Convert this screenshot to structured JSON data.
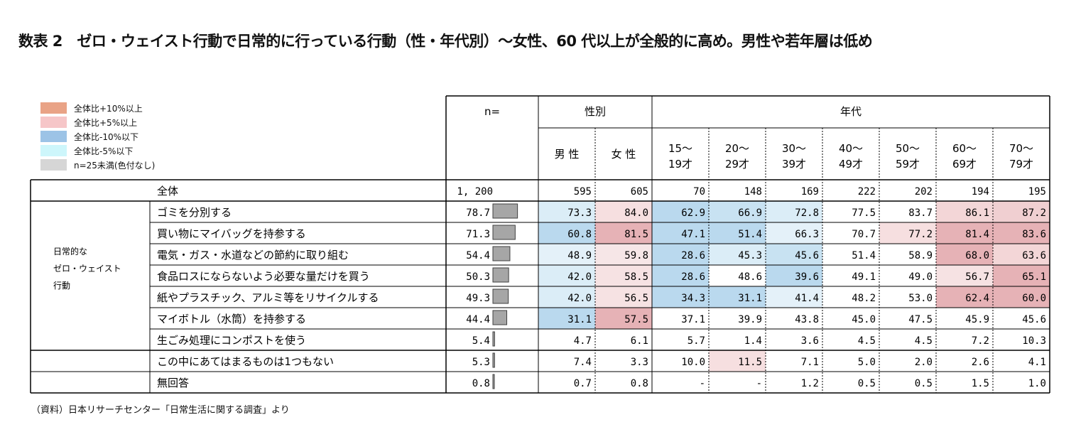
{
  "title": "数表 2　ゼロ・ウェイスト行動で日常的に行っている行動（性・年代別）〜女性、60 代以上が全般的に高め。男性や若年層は低め",
  "legend": [
    {
      "label": "全体比+10%以上",
      "color": "#e9a386"
    },
    {
      "label": "全体比+5%以上",
      "color": "#f6c6c8"
    },
    {
      "label": "全体比-10%以下",
      "color": "#9cc3e6"
    },
    {
      "label": "全体比-5%以下",
      "color": "#cdf6fb"
    },
    {
      "label": "n=25未満(色付なし)",
      "color": "#d6d6d6"
    }
  ],
  "note": "（資料）日本リサーチセンター「日常生活に関する調査」より",
  "chart_data": {
    "type": "table",
    "header": {
      "n_label": "n=",
      "gender_group": "性別",
      "age_group": "年代",
      "columns": [
        {
          "line1": "男 性",
          "line2": ""
        },
        {
          "line1": "女 性",
          "line2": ""
        },
        {
          "line1": "15〜",
          "line2": "19才"
        },
        {
          "line1": "20〜",
          "line2": "29才"
        },
        {
          "line1": "30〜",
          "line2": "39才"
        },
        {
          "line1": "40〜",
          "line2": "49才"
        },
        {
          "line1": "50〜",
          "line2": "59才"
        },
        {
          "line1": "60〜",
          "line2": "69才"
        },
        {
          "line1": "70〜",
          "line2": "79才"
        }
      ]
    },
    "group_label": [
      "日常的な",
      "ゼロ・ウェイスト",
      "行動"
    ],
    "base_row": {
      "label": "全体",
      "total": "1, 200",
      "cells": [
        "595",
        "605",
        "70",
        "148",
        "169",
        "222",
        "202",
        "194",
        "195"
      ]
    },
    "rows": [
      {
        "label": "ゴミを分別する",
        "total": "78.7",
        "total_value": 78.7,
        "group": true,
        "cells": [
          {
            "v": "73.3",
            "c": "#dbedf7"
          },
          {
            "v": "84.0",
            "c": "#f6dfe0"
          },
          {
            "v": "62.9",
            "c": "#bad9ee"
          },
          {
            "v": "66.9",
            "c": "#c8e2f2"
          },
          {
            "v": "72.8",
            "c": "#dbedf7"
          },
          {
            "v": "77.5",
            "c": ""
          },
          {
            "v": "83.7",
            "c": ""
          },
          {
            "v": "86.1",
            "c": "#f3d6d7"
          },
          {
            "v": "87.2",
            "c": "#f0cfd1"
          }
        ]
      },
      {
        "label": "買い物にマイバッグを持参する",
        "total": "71.3",
        "total_value": 71.3,
        "group": true,
        "cells": [
          {
            "v": "60.8",
            "c": "#bad9ee"
          },
          {
            "v": "81.5",
            "c": "#e6b2b6"
          },
          {
            "v": "47.1",
            "c": "#bad9ee"
          },
          {
            "v": "51.4",
            "c": "#bad9ee"
          },
          {
            "v": "66.3",
            "c": "#e4f1f9"
          },
          {
            "v": "70.7",
            "c": ""
          },
          {
            "v": "77.2",
            "c": "#f6dfe0"
          },
          {
            "v": "81.4",
            "c": "#e6b2b6"
          },
          {
            "v": "83.6",
            "c": "#e6b2b6"
          }
        ]
      },
      {
        "label": "電気・ガス・水道などの節約に取り組む",
        "total": "54.4",
        "total_value": 54.4,
        "group": true,
        "cells": [
          {
            "v": "48.9",
            "c": "#e4f1f9"
          },
          {
            "v": "59.8",
            "c": "#f6e6e7"
          },
          {
            "v": "28.6",
            "c": "#bad9ee"
          },
          {
            "v": "45.3",
            "c": "#dbedf7"
          },
          {
            "v": "45.6",
            "c": "#c8e2f2"
          },
          {
            "v": "51.4",
            "c": ""
          },
          {
            "v": "58.9",
            "c": ""
          },
          {
            "v": "68.0",
            "c": "#e6b2b6"
          },
          {
            "v": "63.6",
            "c": "#f3d6d7"
          }
        ]
      },
      {
        "label": "食品ロスにならないよう必要な量だけを買う",
        "total": "50.3",
        "total_value": 50.3,
        "group": true,
        "cells": [
          {
            "v": "42.0",
            "c": "#dbedf7"
          },
          {
            "v": "58.5",
            "c": "#f6e2e3"
          },
          {
            "v": "28.6",
            "c": "#bad9ee"
          },
          {
            "v": "48.6",
            "c": ""
          },
          {
            "v": "39.6",
            "c": "#bad9ee"
          },
          {
            "v": "49.1",
            "c": ""
          },
          {
            "v": "49.0",
            "c": ""
          },
          {
            "v": "56.7",
            "c": "#f6e2e3"
          },
          {
            "v": "65.1",
            "c": "#e6b2b6"
          }
        ]
      },
      {
        "label": "紙やプラスチック、アルミ等をリサイクルする",
        "total": "49.3",
        "total_value": 49.3,
        "group": true,
        "cells": [
          {
            "v": "42.0",
            "c": "#dbedf7"
          },
          {
            "v": "56.5",
            "c": "#f6e2e3"
          },
          {
            "v": "34.3",
            "c": "#bad9ee"
          },
          {
            "v": "31.1",
            "c": "#bad9ee"
          },
          {
            "v": "41.4",
            "c": "#e4f1f9"
          },
          {
            "v": "48.2",
            "c": ""
          },
          {
            "v": "53.0",
            "c": ""
          },
          {
            "v": "62.4",
            "c": "#e6b2b6"
          },
          {
            "v": "60.0",
            "c": "#e6b2b6"
          }
        ]
      },
      {
        "label": "マイボトル（水筒）を持参する",
        "total": "44.4",
        "total_value": 44.4,
        "group": true,
        "cells": [
          {
            "v": "31.1",
            "c": "#bad9ee"
          },
          {
            "v": "57.5",
            "c": "#e6b2b6"
          },
          {
            "v": "37.1",
            "c": ""
          },
          {
            "v": "39.9",
            "c": ""
          },
          {
            "v": "43.8",
            "c": ""
          },
          {
            "v": "45.0",
            "c": ""
          },
          {
            "v": "47.5",
            "c": ""
          },
          {
            "v": "45.9",
            "c": ""
          },
          {
            "v": "45.6",
            "c": ""
          }
        ]
      },
      {
        "label": "生ごみ処理にコンポストを使う",
        "total": "5.4",
        "total_value": 5.4,
        "group": true,
        "cells": [
          {
            "v": "4.7",
            "c": ""
          },
          {
            "v": "6.1",
            "c": ""
          },
          {
            "v": "5.7",
            "c": ""
          },
          {
            "v": "1.4",
            "c": ""
          },
          {
            "v": "3.6",
            "c": ""
          },
          {
            "v": "4.5",
            "c": ""
          },
          {
            "v": "4.5",
            "c": ""
          },
          {
            "v": "7.2",
            "c": ""
          },
          {
            "v": "10.3",
            "c": ""
          }
        ]
      },
      {
        "label": "この中にあてはまるものは1つもない",
        "total": "5.3",
        "total_value": 5.3,
        "group": false,
        "cells": [
          {
            "v": "7.4",
            "c": ""
          },
          {
            "v": "3.3",
            "c": ""
          },
          {
            "v": "10.0",
            "c": ""
          },
          {
            "v": "11.5",
            "c": "#f6dfe0"
          },
          {
            "v": "7.1",
            "c": ""
          },
          {
            "v": "5.0",
            "c": ""
          },
          {
            "v": "2.0",
            "c": ""
          },
          {
            "v": "2.6",
            "c": ""
          },
          {
            "v": "4.1",
            "c": ""
          }
        ]
      },
      {
        "label": "無回答",
        "total": "0.8",
        "total_value": 0.8,
        "group": false,
        "cells": [
          {
            "v": "0.7",
            "c": ""
          },
          {
            "v": "0.8",
            "c": ""
          },
          {
            "v": "-",
            "c": ""
          },
          {
            "v": "-",
            "c": ""
          },
          {
            "v": "1.2",
            "c": ""
          },
          {
            "v": "0.5",
            "c": ""
          },
          {
            "v": "0.5",
            "c": ""
          },
          {
            "v": "1.5",
            "c": ""
          },
          {
            "v": "1.0",
            "c": ""
          }
        ]
      }
    ]
  }
}
